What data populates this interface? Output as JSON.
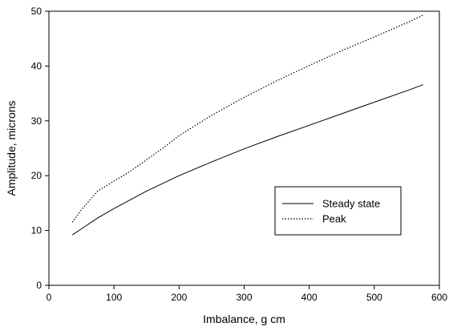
{
  "chart_data": {
    "type": "line",
    "xlabel": "Imbalance, g cm",
    "ylabel": "Amplitude, microns",
    "xlim": [
      0,
      600
    ],
    "ylim": [
      0,
      50
    ],
    "xticks": [
      0,
      100,
      200,
      300,
      400,
      500,
      600
    ],
    "yticks": [
      0,
      10,
      20,
      30,
      40,
      50
    ],
    "grid": false,
    "legend_position": "lower-right",
    "series": [
      {
        "name": "Steady state",
        "line_style": "solid",
        "color": "#000000",
        "x": [
          36,
          50,
          75,
          100,
          125,
          150,
          175,
          200,
          250,
          300,
          350,
          400,
          450,
          500,
          550,
          575
        ],
        "y": [
          9.2,
          10.3,
          12.3,
          14.0,
          15.6,
          17.2,
          18.6,
          20.0,
          22.5,
          24.9,
          27.1,
          29.2,
          31.3,
          33.4,
          35.5,
          36.6
        ]
      },
      {
        "name": "Peak",
        "line_style": "dotted",
        "color": "#000000",
        "x": [
          36,
          50,
          75,
          100,
          125,
          150,
          175,
          200,
          250,
          300,
          350,
          400,
          450,
          500,
          550,
          575
        ],
        "y": [
          11.5,
          13.8,
          17.2,
          19.0,
          20.8,
          22.9,
          25.0,
          27.3,
          31.0,
          34.3,
          37.3,
          40.1,
          42.8,
          45.3,
          47.9,
          49.3
        ]
      }
    ]
  }
}
